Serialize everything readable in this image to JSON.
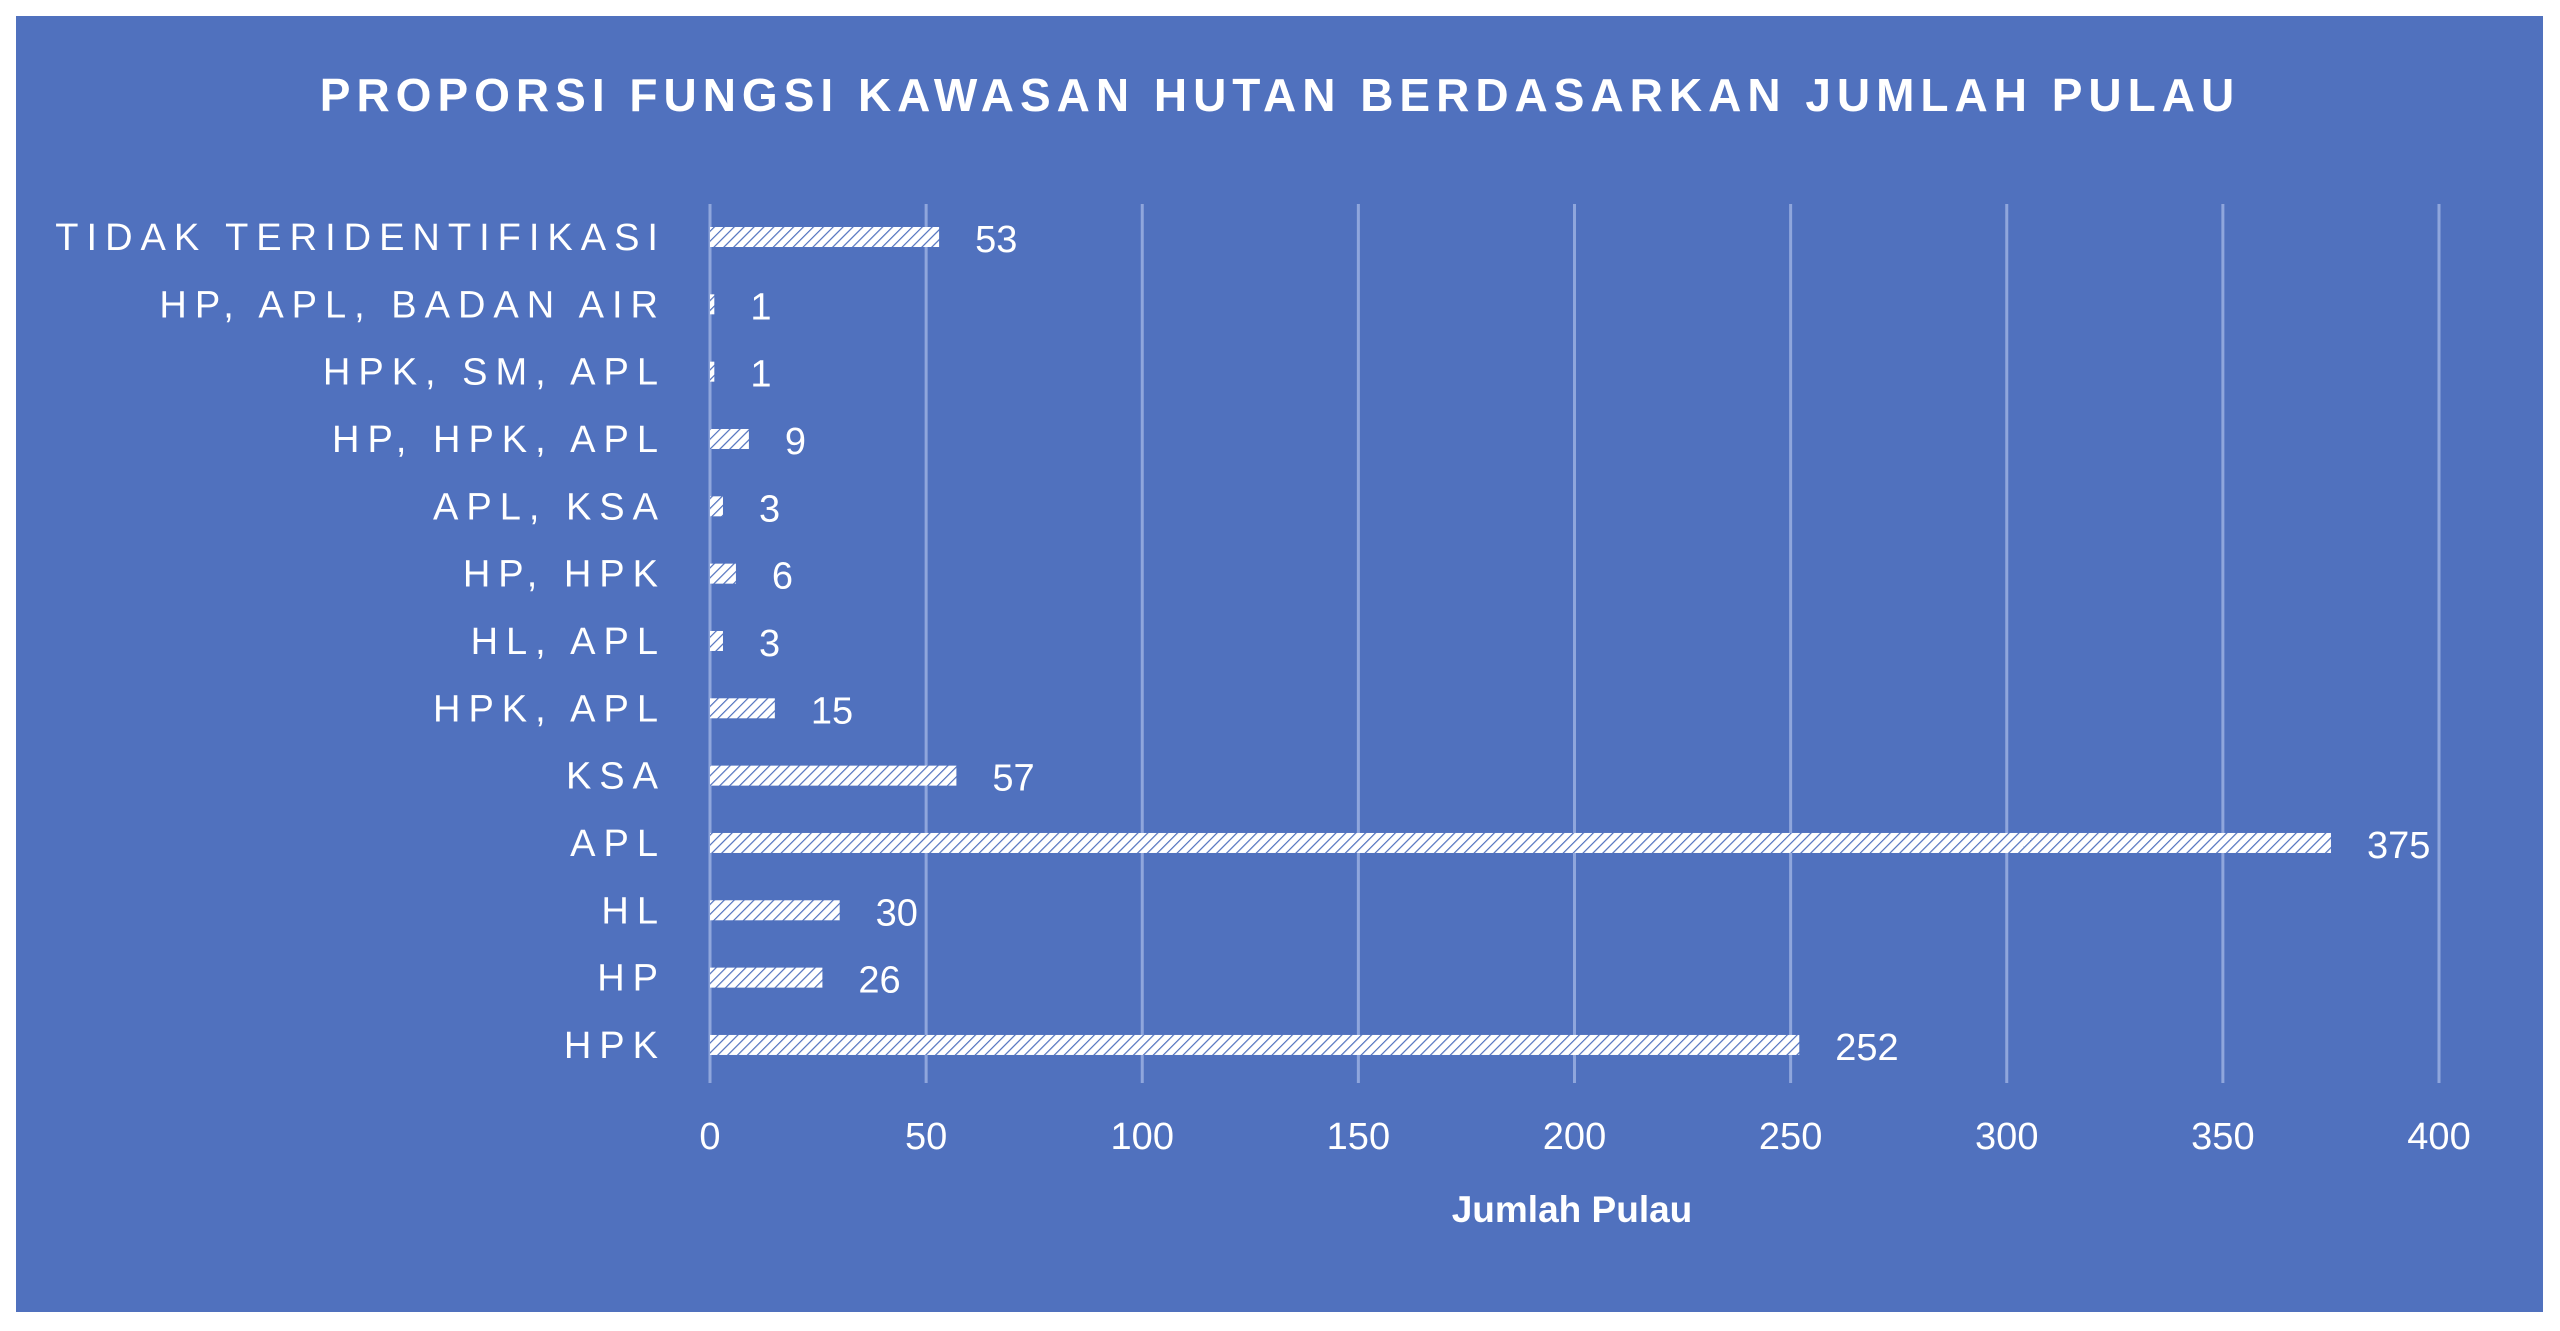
{
  "chart_data": {
    "type": "bar",
    "orientation": "horizontal",
    "title": "PROPORSI FUNGSI KAWASAN HUTAN BERDASARKAN JUMLAH PULAU",
    "xlabel": "Jumlah Pulau",
    "ylabel": "",
    "categories": [
      "TIDAK TERIDENTIFIKASI",
      "HP, APL, BADAN AIR",
      "HPK, SM, APL",
      "HP, HPK, APL",
      "APL, KSA",
      "HP, HPK",
      "HL, APL",
      "HPK, APL",
      "KSA",
      "APL",
      "HL",
      "HP",
      "HPK"
    ],
    "values": [
      53,
      1,
      1,
      9,
      3,
      6,
      3,
      15,
      57,
      375,
      30,
      26,
      252
    ],
    "xlim": [
      0,
      400
    ],
    "xticks": [
      0,
      50,
      100,
      150,
      200,
      250,
      300,
      350,
      400
    ],
    "grid": true,
    "data_labels": true,
    "bar_fill": "white diagonal hatch",
    "background_color": "#5071be",
    "text_color": "#ffffff"
  }
}
